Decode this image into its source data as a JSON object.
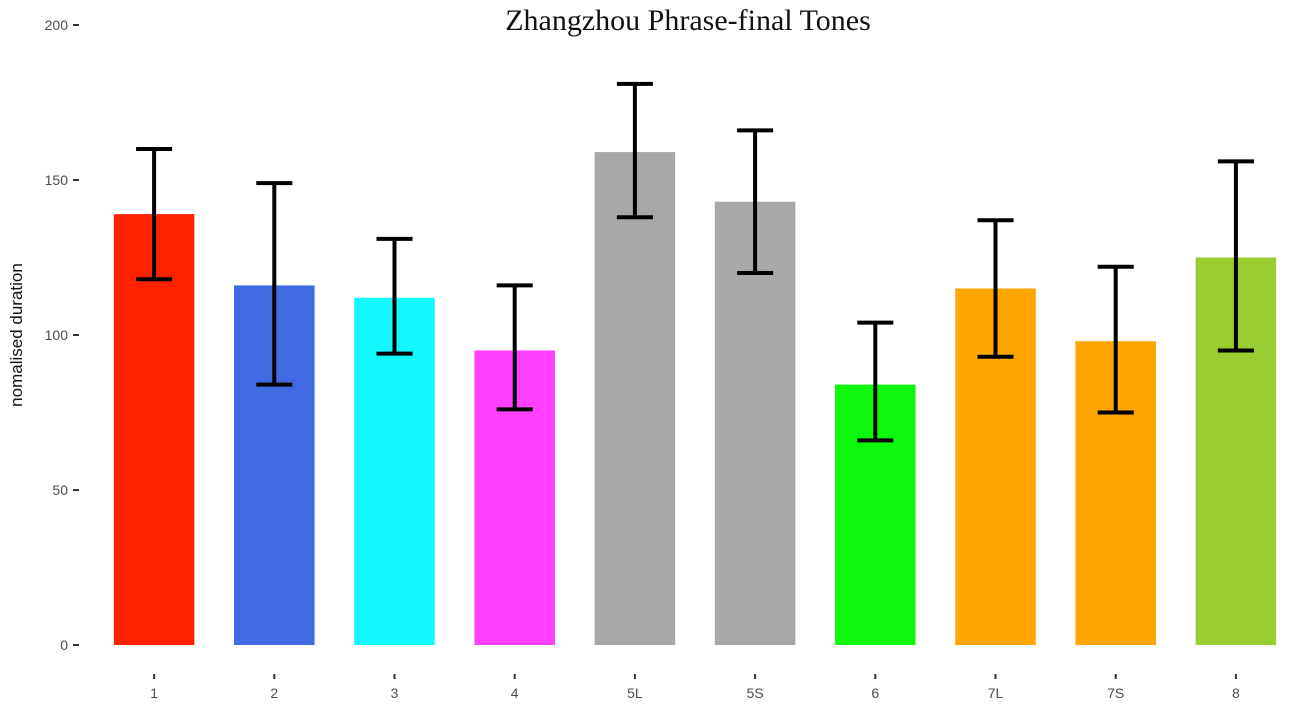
{
  "chart_data": {
    "type": "bar",
    "title": "Zhangzhou Phrase-final Tones",
    "xlabel": "",
    "ylabel": "nomalised duration",
    "ylim": [
      0,
      200
    ],
    "yticks": [
      0,
      50,
      100,
      150,
      200
    ],
    "grid": false,
    "legend": "none",
    "categories": [
      "1",
      "2",
      "3",
      "4",
      "5L",
      "5S",
      "6",
      "7L",
      "7S",
      "8"
    ],
    "values": [
      139,
      116,
      112,
      95,
      159,
      143,
      84,
      115,
      98,
      125
    ],
    "error_low": [
      118,
      84,
      94,
      76,
      138,
      120,
      66,
      93,
      75,
      95
    ],
    "error_high": [
      160,
      149,
      131,
      116,
      181,
      166,
      104,
      137,
      122,
      156
    ],
    "colors": [
      "#ff2200",
      "#4169e1",
      "#11f8ff",
      "#ff40ff",
      "#a8a8a8",
      "#a8a8a8",
      "#0ef80e",
      "#ffa500",
      "#ffa500",
      "#9acd32"
    ]
  }
}
